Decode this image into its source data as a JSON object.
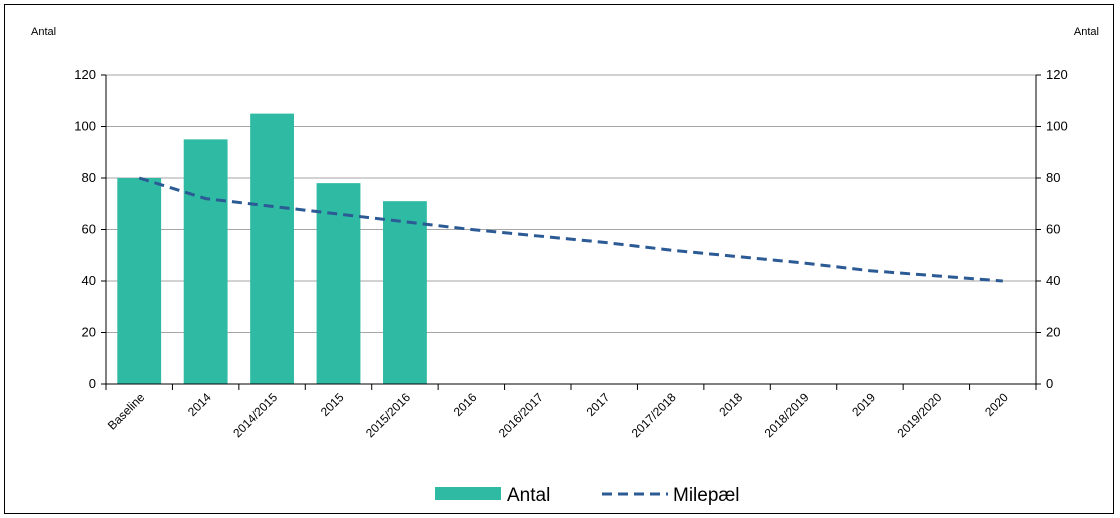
{
  "chart_data": {
    "type": "bar",
    "categories": [
      "Baseline",
      "2014",
      "2014/2015",
      "2015",
      "2015/2016",
      "2016",
      "2016/2017",
      "2017",
      "2017/2018",
      "2018",
      "2018/2019",
      "2019",
      "2019/2020",
      "2020"
    ],
    "series": [
      {
        "name": "Antal",
        "type": "bar",
        "values": [
          80,
          95,
          105,
          78,
          71,
          null,
          null,
          null,
          null,
          null,
          null,
          null,
          null,
          null
        ]
      },
      {
        "name": "Milepæl",
        "type": "line",
        "style": "dashed",
        "values": [
          80,
          72,
          69,
          66,
          63,
          60,
          57.5,
          55,
          52,
          49.5,
          47,
          44,
          42,
          40
        ]
      }
    ],
    "ylabel_left": "Antal",
    "ylabel_right": "Antal",
    "ylim": [
      0,
      120
    ],
    "yticks": [
      "0",
      "20",
      "40",
      "60",
      "80",
      "100",
      "120"
    ],
    "grid": true,
    "legend": "bottom-center",
    "colors": {
      "bar": "#2fbba3",
      "line": "#2b5a94",
      "grid": "#a6a6a6"
    }
  }
}
